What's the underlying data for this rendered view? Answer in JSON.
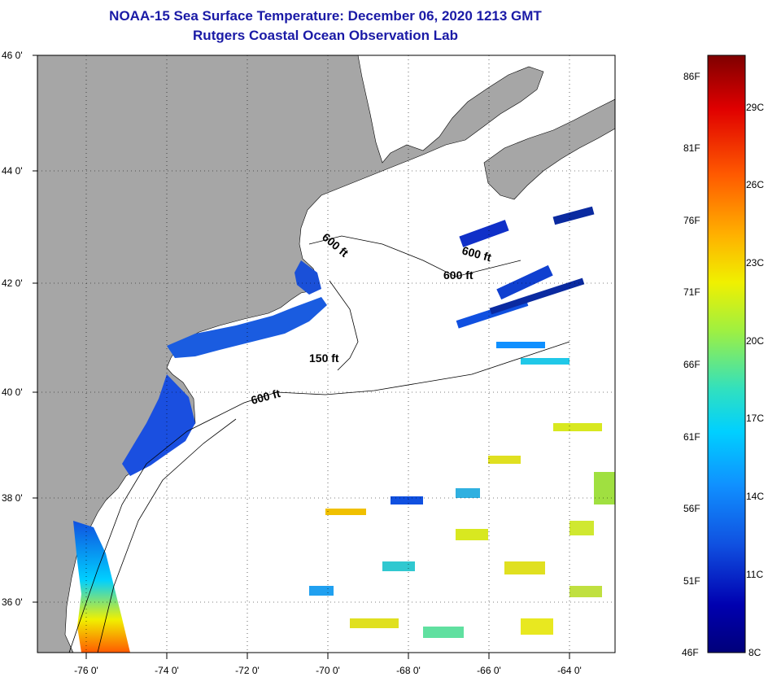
{
  "title": "NOAA-15 Sea Surface Temperature:  December 06, 2020 1213 GMT",
  "subtitle": "Rutgers Coastal Ocean Observation Lab",
  "map": {
    "lat_labels": [
      "46 0'",
      "44 0'",
      "42 0'",
      "40 0'",
      "38 0'",
      "36 0'"
    ],
    "lon_labels": [
      "-76 0'",
      "-74 0'",
      "-72 0'",
      "-70 0'",
      "-68 0'",
      "-66 0'",
      "-64 0'"
    ],
    "contour_labels": [
      "600 ft",
      "600 ft",
      "600 ft",
      "150 ft",
      "600 ft"
    ],
    "colors": {
      "land": "#a6a6a6",
      "ocean": "#ffffff",
      "coast": "#000000"
    }
  },
  "colorbar": {
    "fahrenheit": [
      "86F",
      "81F",
      "76F",
      "71F",
      "66F",
      "61F",
      "56F",
      "51F",
      "46F"
    ],
    "celsius": [
      "29C",
      "26C",
      "23C",
      "20C",
      "17C",
      "14C",
      "11C",
      "8C"
    ],
    "stops": [
      "#7f0000",
      "#e00000",
      "#ff5a00",
      "#ffb000",
      "#f0f000",
      "#a0f040",
      "#30e0c0",
      "#00d0ff",
      "#1090ff",
      "#1050e0",
      "#0000b0",
      "#00007a"
    ]
  }
}
